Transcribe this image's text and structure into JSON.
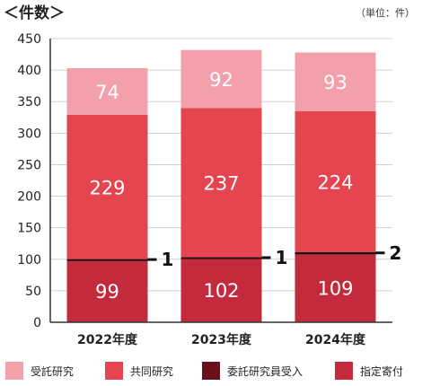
{
  "header": {
    "title": "＜件数＞",
    "unit_note": "（単位：件）"
  },
  "colors": {
    "受託研究": "#f4a0ac",
    "共同研究": "#e5454f",
    "委託研究員受入": "#6b0f1d",
    "指定寄付": "#c32a3b",
    "grid": "#d0d0d0",
    "axis": "#333333"
  },
  "chart_data": {
    "type": "bar",
    "stacked": true,
    "categories": [
      "2022年度",
      "2023年度",
      "2024年度"
    ],
    "ylim": [
      0,
      450
    ],
    "yticks": [
      0,
      50,
      100,
      150,
      200,
      250,
      300,
      350,
      400,
      450
    ],
    "grid": true,
    "legend_position": "bottom",
    "series": [
      {
        "name": "指定寄付",
        "values": [
          99,
          102,
          109
        ]
      },
      {
        "name": "委託研究員受入",
        "values": [
          1,
          1,
          2
        ]
      },
      {
        "name": "共同研究",
        "values": [
          229,
          237,
          224
        ]
      },
      {
        "name": "受託研究",
        "values": [
          74,
          92,
          93
        ]
      }
    ],
    "legend_order": [
      "受託研究",
      "共同研究",
      "委託研究員受入",
      "指定寄付"
    ]
  }
}
